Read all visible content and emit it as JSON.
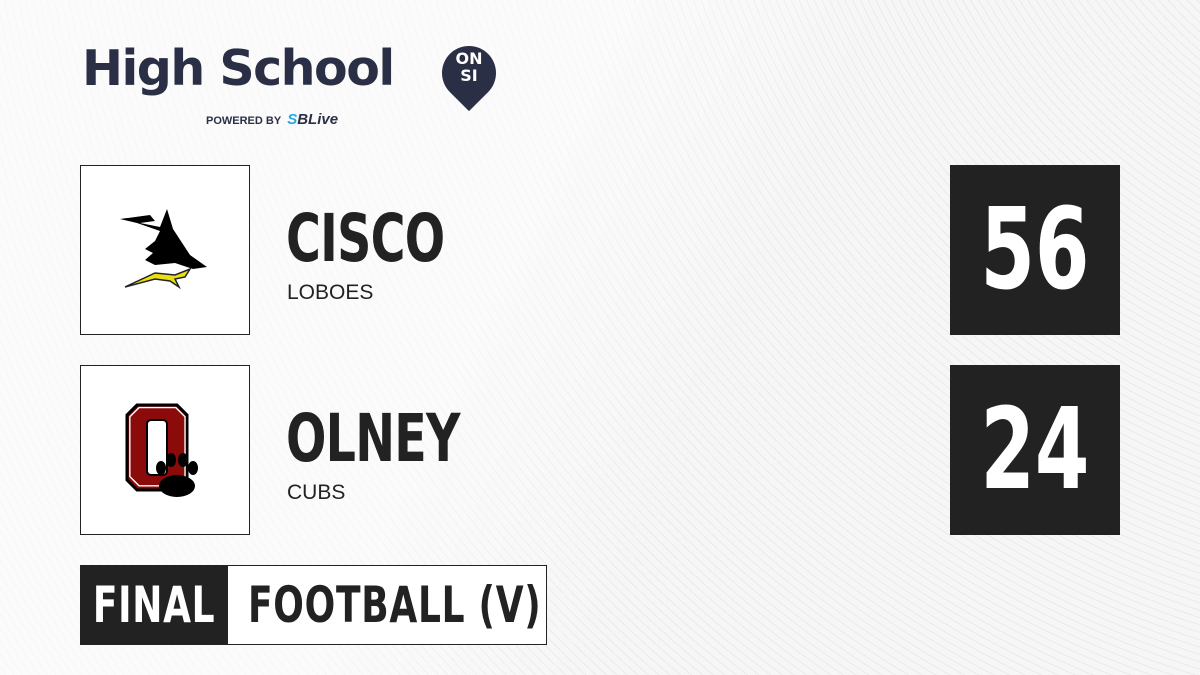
{
  "brand": {
    "title": "High School",
    "badge_top": "ON",
    "badge_bottom": "SI",
    "powered_by": "POWERED BY",
    "partner_prefix": "S",
    "partner": "SBLive"
  },
  "teams": [
    {
      "school": "CISCO",
      "mascot": "LOBOES",
      "score": "56",
      "logo_icon": "wolf-head-icon"
    },
    {
      "school": "OLNEY",
      "mascot": "CUBS",
      "score": "24",
      "logo_icon": "block-o-paw-icon"
    }
  ],
  "status": "FINAL",
  "sport": "FOOTBALL (V)",
  "colors": {
    "brand_navy": "#2b2f45",
    "dark": "#222222",
    "olney_red": "#8b0a0a",
    "cisco_yellow": "#e8e010",
    "sblive_blue": "#29a8e0"
  }
}
